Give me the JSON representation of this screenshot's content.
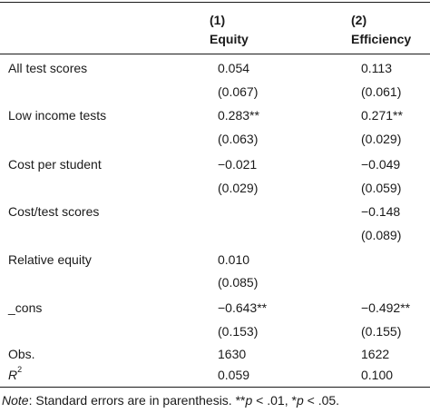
{
  "header": {
    "col1_number": "(1)",
    "col1_title": "Equity",
    "col2_number": "(2)",
    "col2_title": "Efficiency"
  },
  "rows": [
    {
      "label": "All test scores",
      "c1": "0.054",
      "c2": "0.113"
    },
    {
      "label": "",
      "c1": "(0.067)",
      "c2": "(0.061)"
    },
    {
      "label": "Low income tests",
      "c1": "0.283**",
      "c2": "0.271**"
    },
    {
      "label": "",
      "c1": "(0.063)",
      "c2": "(0.029)"
    },
    {
      "label": "Cost per student",
      "c1": "−0.021",
      "c2": "−0.049"
    },
    {
      "label": "",
      "c1": "(0.029)",
      "c2": "(0.059)"
    },
    {
      "label": "Cost/test scores",
      "c1": "",
      "c2": "−0.148"
    },
    {
      "label": "",
      "c1": "",
      "c2": "(0.089)"
    },
    {
      "label": "Relative equity",
      "c1": "0.010",
      "c2": ""
    },
    {
      "label": "",
      "c1": "(0.085)",
      "c2": ""
    },
    {
      "label": "_cons",
      "c1": "−0.643**",
      "c2": "−0.492**"
    },
    {
      "label": "",
      "c1": "(0.153)",
      "c2": "(0.155)"
    },
    {
      "label": "Obs.",
      "c1": "1630",
      "c2": "1622"
    }
  ],
  "r2": {
    "label_base": "R",
    "label_sup": "2",
    "c1": "0.059",
    "c2": "0.100"
  },
  "note": {
    "prefix": "Note",
    "body": ": Standard errors are in parenthesis. **",
    "p1": "p",
    "mid": " < .01, *",
    "p2": "p",
    "tail": " < .05."
  }
}
